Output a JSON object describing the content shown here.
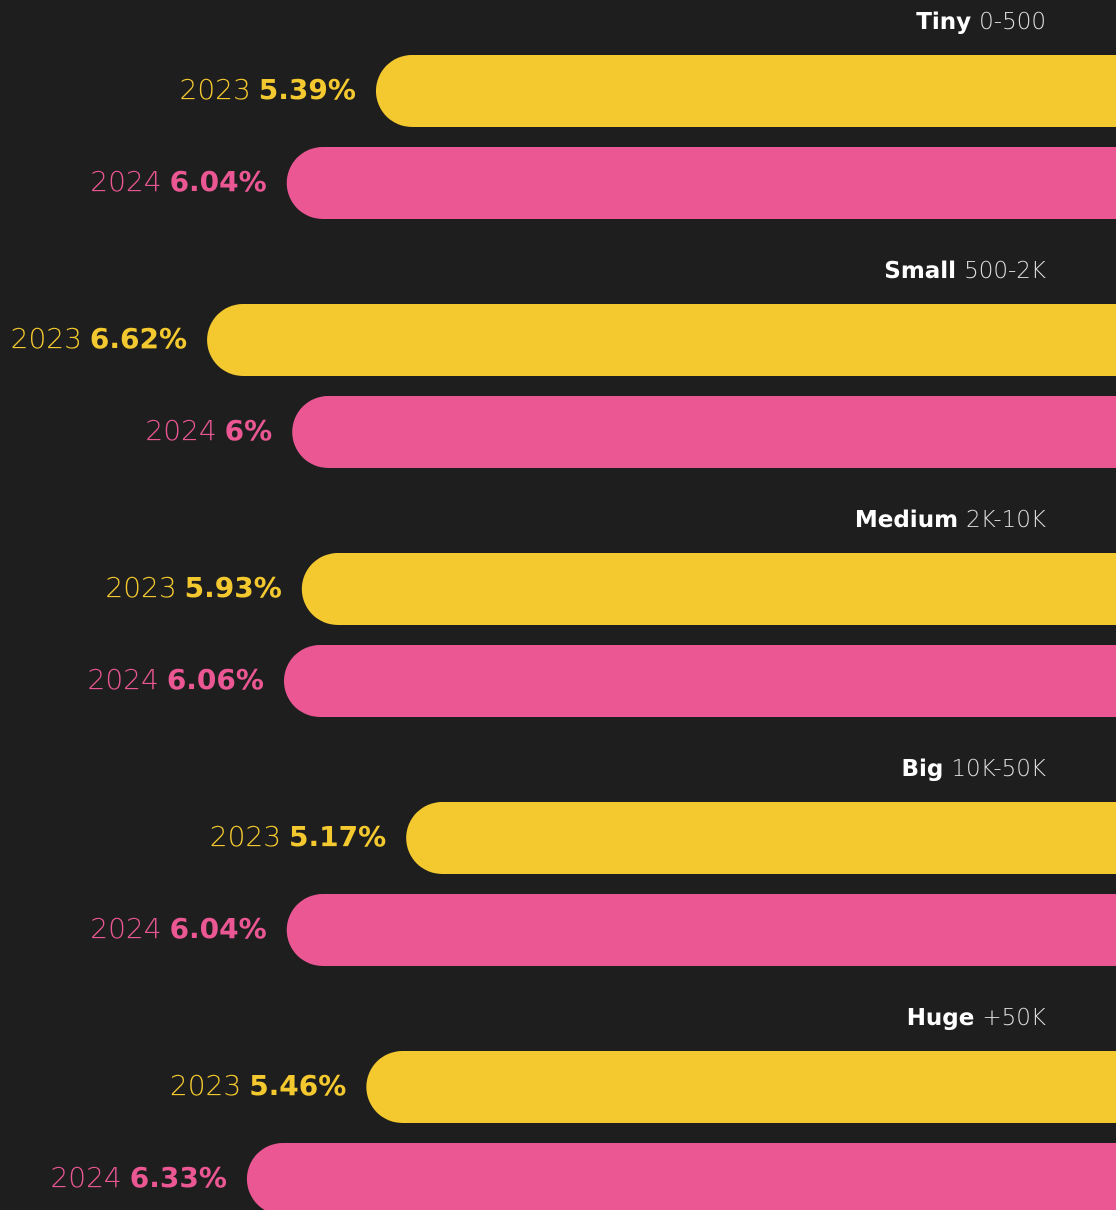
{
  "chart_data": {
    "type": "bar",
    "categories": [
      "Tiny",
      "Small",
      "Medium",
      "Big",
      "Huge"
    ],
    "ranges": [
      "0-500",
      "500-2K",
      "2K-10K",
      "10K-50K",
      "+50K"
    ],
    "series": [
      {
        "name": "2023",
        "color": "#f4c92f",
        "values": [
          5.39,
          6.62,
          5.93,
          5.17,
          5.46
        ],
        "value_labels": [
          "5.39%",
          "6.62%",
          "5.93%",
          "5.17%",
          "5.46%"
        ]
      },
      {
        "name": "2024",
        "color": "#ea5793",
        "values": [
          6.04,
          6,
          6.06,
          6.04,
          6.33
        ],
        "value_labels": [
          "6.04%",
          "6%",
          "6.06%",
          "6.04%",
          "6.33%"
        ]
      }
    ]
  }
}
